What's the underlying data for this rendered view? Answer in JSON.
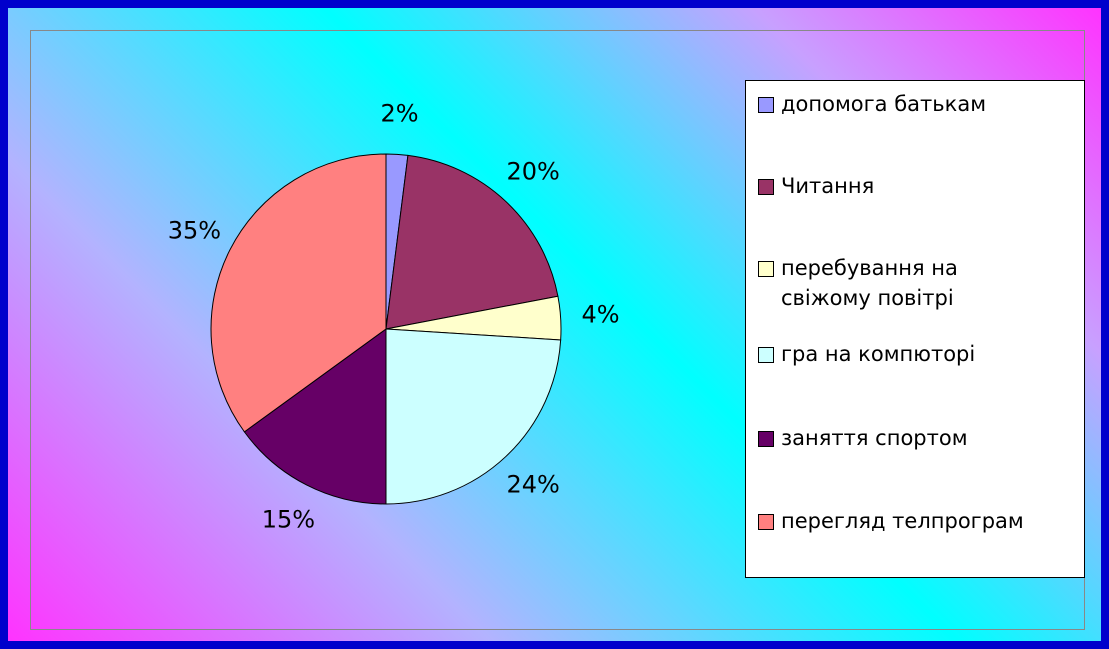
{
  "chart_data": {
    "type": "pie",
    "categories": [
      "допомога батькам",
      "Читання",
      "перебування на свіжому повітрі",
      "гра на компюторі",
      "заняття спортом",
      "перегляд телпрограм"
    ],
    "values": [
      2,
      20,
      4,
      24,
      15,
      35
    ],
    "value_labels": [
      "2%",
      "20%",
      "4%",
      "24%",
      "15%",
      "35%"
    ],
    "colors": [
      "#9999ff",
      "#993366",
      "#ffffcc",
      "#ccffff",
      "#660066",
      "#ff8080"
    ],
    "legend": "right"
  }
}
